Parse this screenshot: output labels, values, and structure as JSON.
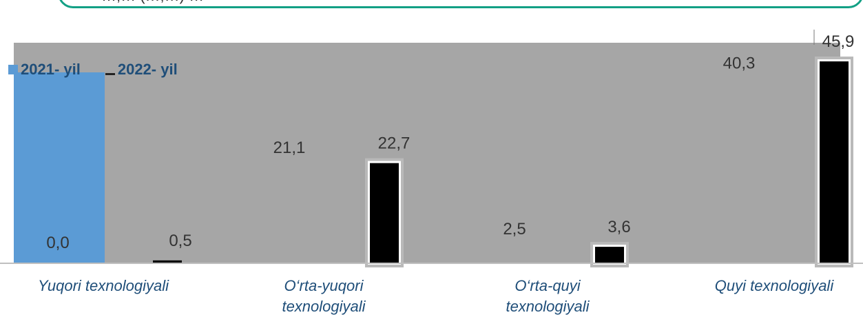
{
  "callout": {
    "text": "…,… (…,…) …"
  },
  "colors": {
    "plot_background": "#a6a6a6",
    "series_2021": "#5b9bd5",
    "series_2022": "#000000",
    "category_text": "#1f4e79",
    "value_text": "#333333",
    "callout_border": "#13a085"
  },
  "chart_data": {
    "type": "bar",
    "title": "",
    "xlabel": "",
    "ylabel": "",
    "ylim": [
      0,
      46
    ],
    "grid": false,
    "legend_position": "top-left",
    "categories": [
      "Yuqori texnologiyali",
      "O‘rta-yuqori texnologiyali",
      "O‘rta-quyi texnologiyali",
      "Quyi texnologiyali"
    ],
    "series": [
      {
        "name": "2021- yil",
        "values": [
          0.0,
          21.1,
          2.5,
          40.3
        ],
        "labels": [
          "0,0",
          "21,1",
          "2,5",
          "40,3"
        ]
      },
      {
        "name": "2022- yil",
        "values": [
          0.5,
          22.7,
          3.6,
          45.9
        ],
        "labels": [
          "0,5",
          "22,7",
          "3,6",
          "45,9"
        ]
      }
    ]
  }
}
